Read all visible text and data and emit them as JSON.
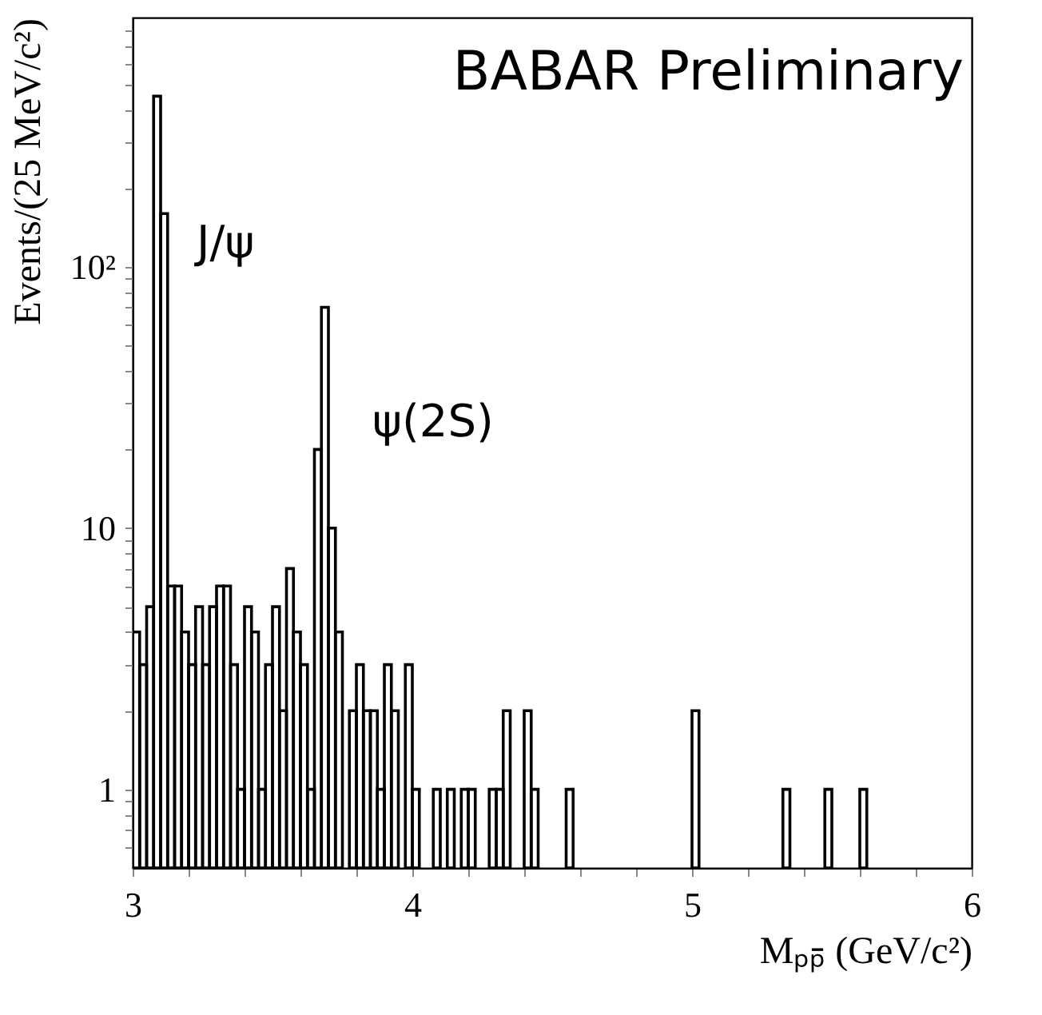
{
  "chart_data": {
    "type": "histogram",
    "xlabel": "Mₚₚ̄ (GeV/c²)",
    "ylabel": "Events/(25 MeV/c²)",
    "bins": [
      3,
      3.025,
      3.05,
      3.075,
      3.1,
      3.125,
      3.15,
      3.175,
      3.2,
      3.225,
      3.25,
      3.275,
      3.3,
      3.325,
      3.35,
      3.375,
      3.4,
      3.425,
      3.45,
      3.475,
      3.5,
      3.525,
      3.55,
      3.575,
      3.6,
      3.625,
      3.65,
      3.675,
      3.7,
      3.725,
      3.75,
      3.775,
      3.8,
      3.825,
      3.85,
      3.875,
      3.9,
      3.925,
      3.95,
      3.975,
      4,
      4.025,
      4.05,
      4.075,
      4.1,
      4.125,
      4.15,
      4.175,
      4.2,
      4.225,
      4.25,
      4.275,
      4.3,
      4.325,
      4.35,
      4.375,
      4.4,
      4.425,
      4.45,
      4.475,
      4.5,
      4.525,
      4.55,
      4.575,
      4.6,
      4.625,
      4.65,
      4.675,
      4.7,
      4.725,
      4.75,
      4.775,
      4.8,
      4.825,
      4.85,
      4.875,
      4.9,
      4.925,
      4.95,
      4.975,
      5,
      5.025,
      5.05,
      5.075,
      5.1,
      5.125,
      5.15,
      5.175,
      5.2,
      5.225,
      5.25,
      5.275,
      5.3,
      5.325,
      5.35,
      5.375,
      5.4,
      5.425,
      5.45,
      5.475,
      5.5,
      5.525,
      5.55,
      5.575,
      5.6,
      5.625,
      5.65,
      5.675,
      5.7,
      5.725,
      5.75,
      5.775,
      5.8,
      5.825,
      5.85,
      5.875,
      5.9,
      5.925,
      5.95,
      5.975,
      6
    ],
    "values": [
      4,
      3,
      5,
      450,
      160,
      6,
      6,
      4,
      3,
      5,
      3,
      5,
      6,
      6,
      3,
      1,
      5,
      4,
      1,
      3,
      5,
      2,
      7,
      4,
      3,
      1,
      20,
      70,
      10,
      4,
      null,
      2,
      3,
      2,
      2,
      1,
      3,
      2,
      null,
      3,
      1,
      null,
      null,
      1,
      null,
      1,
      null,
      1,
      1,
      null,
      null,
      1,
      1,
      2,
      null,
      null,
      2,
      1,
      null,
      null,
      null,
      null,
      1,
      null,
      null,
      null,
      null,
      null,
      null,
      null,
      null,
      null,
      null,
      null,
      null,
      null,
      null,
      null,
      null,
      null,
      2,
      null,
      null,
      null,
      null,
      null,
      null,
      null,
      null,
      null,
      null,
      null,
      null,
      1,
      null,
      null,
      null,
      null,
      null,
      1,
      null,
      null,
      null,
      null,
      1,
      null,
      null,
      null,
      null,
      null,
      null,
      null,
      null,
      null,
      null,
      null,
      null,
      null,
      null,
      null
    ],
    "color": "#000000",
    "log": "y",
    "xlim": [
      3,
      6
    ],
    "ylim": [
      0.5,
      900
    ],
    "xticks": [
      3,
      {
        "value": 3.2,
        "label": null
      },
      {
        "value": 3.4,
        "label": null
      },
      {
        "value": 3.6,
        "label": null
      },
      {
        "value": 3.8,
        "label": null
      },
      4,
      {
        "value": 4.2,
        "label": null
      },
      {
        "value": 4.4,
        "label": null
      },
      {
        "value": 4.6,
        "label": null
      },
      {
        "value": 4.8,
        "label": null
      },
      5,
      {
        "value": 5.2,
        "label": null
      },
      {
        "value": 5.4,
        "label": null
      },
      {
        "value": 5.6,
        "label": null
      },
      {
        "value": 5.8,
        "label": null
      },
      6
    ],
    "yticks": [
      {
        "value": 0.6,
        "label": null
      },
      {
        "value": 0.7,
        "label": null
      },
      {
        "value": 0.8,
        "label": null
      },
      {
        "value": 0.9,
        "label": null
      },
      1,
      {
        "value": 2,
        "label": null
      },
      {
        "value": 3,
        "label": null
      },
      {
        "value": 4,
        "label": null
      },
      {
        "value": 5,
        "label": null
      },
      {
        "value": 6,
        "label": null
      },
      {
        "value": 7,
        "label": null
      },
      {
        "value": 8,
        "label": null
      },
      {
        "value": 9,
        "label": null
      },
      10,
      {
        "value": 20,
        "label": null
      },
      {
        "value": 30,
        "label": null
      },
      {
        "value": 40,
        "label": null
      },
      {
        "value": 50,
        "label": null
      },
      {
        "value": 60,
        "label": null
      },
      {
        "value": 70,
        "label": null
      },
      {
        "value": 80,
        "label": null
      },
      {
        "value": 90,
        "label": null
      },
      {
        "value": 100,
        "label": "10²"
      },
      {
        "value": 200,
        "label": null
      },
      {
        "value": 300,
        "label": null
      },
      {
        "value": 400,
        "label": null
      },
      {
        "value": 500,
        "label": null
      },
      {
        "value": 600,
        "label": null
      },
      {
        "value": 700,
        "label": null
      },
      {
        "value": 800,
        "label": null
      }
    ],
    "grid": false,
    "annotations": [
      "BABAR Preliminary",
      "J/ψ",
      "ψ(2S)"
    ]
  }
}
